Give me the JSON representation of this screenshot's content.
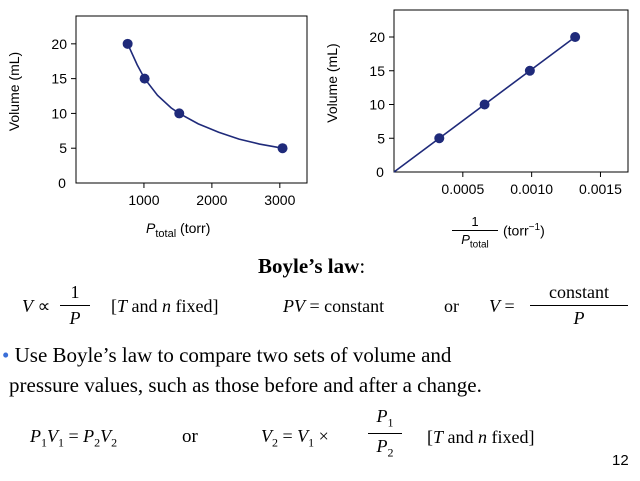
{
  "chart_data": [
    {
      "type": "line",
      "xlabel": "P",
      "xlabel_sub": "total",
      "xlabel_unit": "(torr)",
      "ylabel": "Volume (mL)",
      "xlim": [
        0,
        3400
      ],
      "ylim": [
        0,
        24
      ],
      "xticks": [
        1000,
        2000,
        3000
      ],
      "xtick_labels": [
        "1000",
        "2000",
        "3000"
      ],
      "yticks": [
        5,
        10,
        15,
        20
      ],
      "ytick_labels": [
        "5",
        "10",
        "15",
        "20"
      ],
      "origin_label": "0",
      "x": [
        760,
        1010,
        1520,
        3040
      ],
      "y": [
        20,
        15,
        10,
        5
      ],
      "curve_x": [
        760,
        900,
        1010,
        1200,
        1400,
        1520,
        1800,
        2100,
        2400,
        2700,
        3040
      ],
      "curve_y": [
        20,
        17,
        15,
        12.6,
        10.8,
        10,
        8.5,
        7.3,
        6.3,
        5.6,
        5
      ],
      "series": [
        {
          "values": [
            20,
            15,
            10,
            5
          ]
        }
      ],
      "grid": false
    },
    {
      "type": "line",
      "xlabel_num": "1",
      "xlabel": "P",
      "xlabel_sub": "total",
      "xlabel_unit": "(torr",
      "xlabel_exp": "−1",
      "xlabel_close": ")",
      "ylabel": "Volume (mL)",
      "xlim": [
        0,
        0.0017
      ],
      "ylim": [
        0,
        24
      ],
      "xticks": [
        0.0005,
        0.001,
        0.0015
      ],
      "xtick_labels": [
        "0.0005",
        "0.0010",
        "0.0015"
      ],
      "yticks": [
        5,
        10,
        15,
        20
      ],
      "ytick_labels": [
        "5",
        "10",
        "15",
        "20"
      ],
      "origin_label": "0",
      "x": [
        0.000329,
        0.000658,
        0.000987,
        0.001316
      ],
      "y": [
        5,
        10,
        15,
        20
      ],
      "series": [
        {
          "values": [
            5,
            10,
            15,
            20
          ]
        }
      ],
      "grid": false
    }
  ],
  "colors": {
    "series": "#1f2a7a",
    "text": "#000000",
    "bullet": "#3a6fd8"
  },
  "boyle": {
    "title": "Boyle’s law",
    "title_colon": ":",
    "v": "V",
    "prop": "∝",
    "one": "1",
    "p": "P",
    "fixed_open": "[",
    "t": "T",
    "and": " and ",
    "n": "n",
    "fixed_rest": " fixed]",
    "pv": "PV",
    "eq_constant": " = constant",
    "or": "or",
    "v2": "V",
    "eq": " =",
    "constant": "constant",
    "p_den": "P"
  },
  "bullet": {
    "mark": "•",
    "line1": " Use Boyle’s law to compare two sets of volume and",
    "line2": "pressure values, such as those before and after a change."
  },
  "eq2": {
    "p1": "P",
    "v1": "V",
    "equals": " = ",
    "p2": "P",
    "v2": "V",
    "sub1": "1",
    "sub2": "2",
    "or": "or",
    "lhs": "V",
    "times": "×",
    "bracket": "[T and n fixed]",
    "b_open": "[",
    "b_t": "T",
    "b_and": " and ",
    "b_n": "n",
    "b_rest": " fixed]"
  },
  "page_number": "12"
}
